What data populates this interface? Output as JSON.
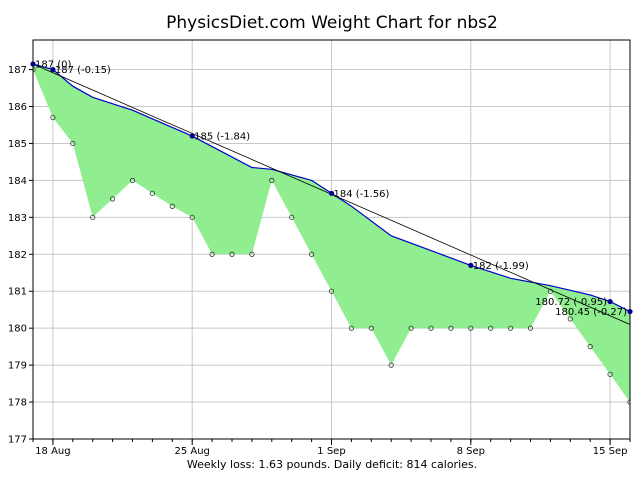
{
  "chart_data": {
    "type": "line",
    "title": "PhysicsDiet.com Weight Chart for nbs2",
    "footer": "Weekly loss: 1.63 pounds. Daily deficit: 814 calories.",
    "ylim": [
      177,
      187.8
    ],
    "yticks": [
      177,
      178,
      179,
      180,
      181,
      182,
      183,
      184,
      185,
      186,
      187
    ],
    "xlim": [
      "2025-08-17",
      "2025-09-16"
    ],
    "xticks": [
      {
        "date": "2025-08-18",
        "label": "18 Aug"
      },
      {
        "date": "2025-08-25",
        "label": "25 Aug"
      },
      {
        "date": "2025-09-01",
        "label": "1 Sep"
      },
      {
        "date": "2025-09-08",
        "label": "8 Sep"
      },
      {
        "date": "2025-09-15",
        "label": "15 Sep"
      }
    ],
    "grid": true,
    "series": [
      {
        "role": "weight",
        "points": [
          [
            "2025-08-17",
            187.0
          ],
          [
            "2025-08-18",
            185.7
          ],
          [
            "2025-08-19",
            185.0
          ],
          [
            "2025-08-20",
            183.0
          ],
          [
            "2025-08-21",
            183.5
          ],
          [
            "2025-08-22",
            184.0
          ],
          [
            "2025-08-23",
            183.65
          ],
          [
            "2025-08-24",
            183.3
          ],
          [
            "2025-08-25",
            183.0
          ],
          [
            "2025-08-26",
            182.0
          ],
          [
            "2025-08-27",
            182.0
          ],
          [
            "2025-08-28",
            182.0
          ],
          [
            "2025-08-29",
            184.0
          ],
          [
            "2025-08-30",
            183.0
          ],
          [
            "2025-08-31",
            182.0
          ],
          [
            "2025-09-01",
            181.0
          ],
          [
            "2025-09-02",
            180.0
          ],
          [
            "2025-09-03",
            180.0
          ],
          [
            "2025-09-04",
            179.0
          ],
          [
            "2025-09-05",
            180.0
          ],
          [
            "2025-09-06",
            180.0
          ],
          [
            "2025-09-07",
            180.0
          ],
          [
            "2025-09-08",
            180.0
          ],
          [
            "2025-09-09",
            180.0
          ],
          [
            "2025-09-10",
            180.0
          ],
          [
            "2025-09-11",
            180.0
          ],
          [
            "2025-09-12",
            181.0
          ],
          [
            "2025-09-13",
            180.25
          ],
          [
            "2025-09-14",
            179.5
          ],
          [
            "2025-09-15",
            178.75
          ],
          [
            "2025-09-16",
            178.0
          ]
        ]
      },
      {
        "role": "trend",
        "points": [
          [
            "2025-08-17",
            187.15
          ],
          [
            "2025-08-18",
            187.0
          ],
          [
            "2025-08-19",
            186.55
          ],
          [
            "2025-08-20",
            186.25
          ],
          [
            "2025-08-22",
            185.9
          ],
          [
            "2025-08-25",
            185.2
          ],
          [
            "2025-08-28",
            184.35
          ],
          [
            "2025-08-29",
            184.3
          ],
          [
            "2025-08-31",
            184.0
          ],
          [
            "2025-09-01",
            183.65
          ],
          [
            "2025-09-02",
            183.3
          ],
          [
            "2025-09-04",
            182.5
          ],
          [
            "2025-09-06",
            182.1
          ],
          [
            "2025-09-08",
            181.7
          ],
          [
            "2025-09-10",
            181.35
          ],
          [
            "2025-09-12",
            181.15
          ],
          [
            "2025-09-14",
            180.9
          ],
          [
            "2025-09-15",
            180.72
          ],
          [
            "2025-09-16",
            180.45
          ]
        ]
      },
      {
        "role": "fit-line",
        "points": [
          [
            "2025-08-17",
            187.15
          ],
          [
            "2025-09-16",
            180.1
          ]
        ]
      }
    ],
    "annotations": [
      {
        "date": "2025-08-17",
        "value": 187.15,
        "text": "187 (0)",
        "anchor": "start"
      },
      {
        "date": "2025-08-18",
        "value": 187.0,
        "text": "187 (-0.15)",
        "anchor": "start"
      },
      {
        "date": "2025-08-25",
        "value": 185.2,
        "text": "185 (-1.84)",
        "anchor": "start"
      },
      {
        "date": "2025-09-01",
        "value": 183.65,
        "text": "184 (-1.56)",
        "anchor": "start"
      },
      {
        "date": "2025-09-08",
        "value": 181.7,
        "text": "182 (-1.99)",
        "anchor": "start"
      },
      {
        "date": "2025-09-15",
        "value": 180.72,
        "text": "180.72 (-0.95)",
        "anchor": "end"
      },
      {
        "date": "2025-09-16",
        "value": 180.45,
        "text": "180.45 (-0.27)",
        "anchor": "end"
      }
    ],
    "colors": {
      "fill": "#90ee90",
      "trend": "#0000cc",
      "fit": "#000000",
      "grid": "#c8c8c8",
      "marker": "#00008b"
    }
  }
}
